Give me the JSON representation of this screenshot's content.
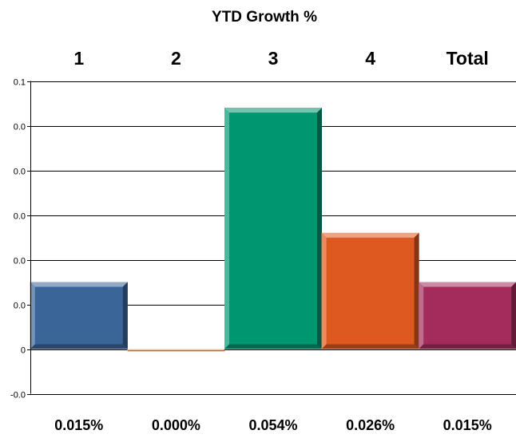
{
  "chart_data": {
    "type": "bar",
    "title": "YTD Growth %",
    "categories": [
      "1",
      "2",
      "3",
      "4",
      "Total"
    ],
    "values": [
      0.015,
      -0.0005,
      0.054,
      0.026,
      0.015
    ],
    "value_labels": [
      "0.015%",
      "0.000%",
      "0.054%",
      "0.026%",
      "0.015%"
    ],
    "bar_colors": [
      "#3a6599",
      "#f3a35a",
      "#009670",
      "#de5920",
      "#a32c5c"
    ],
    "y_ticks": [
      {
        "value": 0.06,
        "label": "0.1"
      },
      {
        "value": 0.05,
        "label": "0.0"
      },
      {
        "value": 0.04,
        "label": "0.0"
      },
      {
        "value": 0.03,
        "label": "0.0"
      },
      {
        "value": 0.02,
        "label": "0.0"
      },
      {
        "value": 0.01,
        "label": "0.0"
      },
      {
        "value": 0.0,
        "label": "0"
      },
      {
        "value": -0.01,
        "label": "-0.0"
      }
    ],
    "ylim": [
      -0.01,
      0.06
    ],
    "grid": true,
    "legend": "none"
  }
}
